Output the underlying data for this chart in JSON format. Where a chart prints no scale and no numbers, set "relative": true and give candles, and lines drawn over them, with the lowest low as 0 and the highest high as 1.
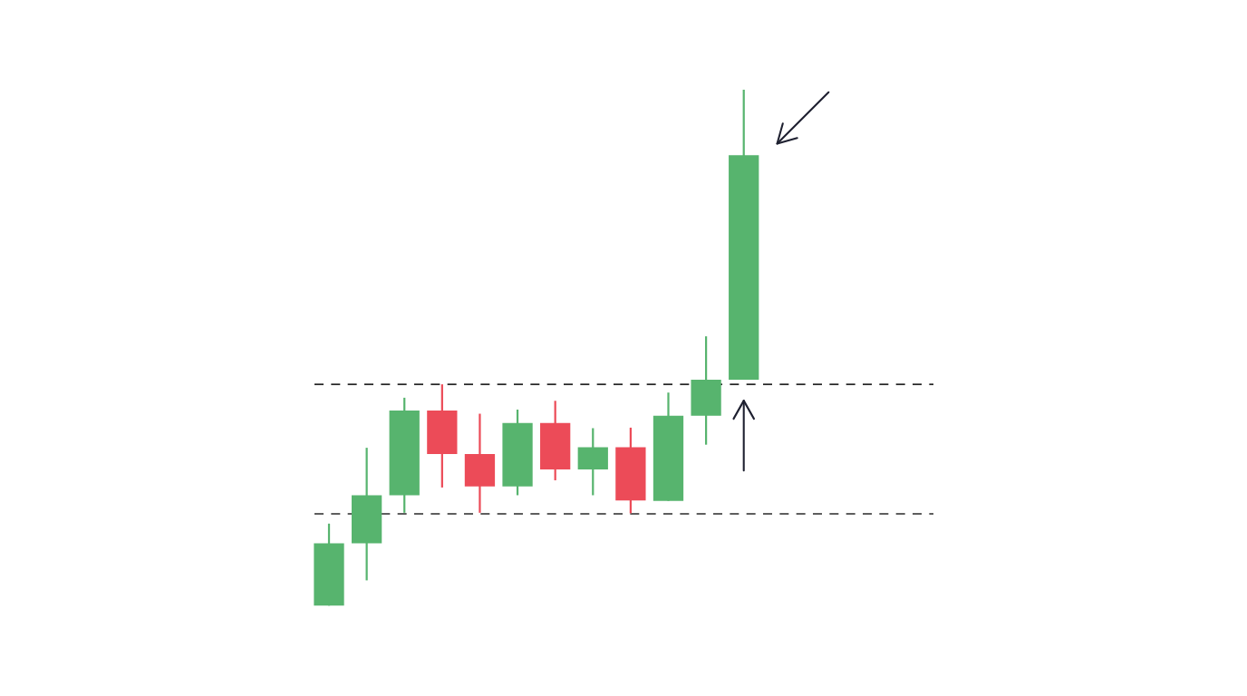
{
  "chart_data": {
    "type": "candlestick",
    "relative": true,
    "categories": [
      null,
      null,
      null,
      null,
      null,
      null,
      null,
      null,
      null,
      null,
      null,
      null
    ],
    "ohlc": [
      [
        0,
        0.159,
        0,
        0.121
      ],
      [
        0.121,
        0.306,
        0.049,
        0.214
      ],
      [
        0.214,
        0.403,
        0.18,
        0.378
      ],
      [
        0.378,
        0.429,
        0.229,
        0.294
      ],
      [
        0.294,
        0.372,
        0.18,
        0.231
      ],
      [
        0.231,
        0.38,
        0.214,
        0.354
      ],
      [
        0.354,
        0.397,
        0.243,
        0.264
      ],
      [
        0.264,
        0.344,
        0.214,
        0.307
      ],
      [
        0.307,
        0.345,
        0.179,
        0.204
      ],
      [
        0.203,
        0.413,
        0.203,
        0.368
      ],
      [
        0.368,
        0.522,
        0.312,
        0.438
      ],
      [
        0.438,
        1,
        0.438,
        0.873
      ]
    ],
    "colors": [
      "#57b46e",
      "#57b46e",
      "#57b46e",
      "#ec4b58",
      "#ec4b58",
      "#57b46e",
      "#ec4b58",
      "#57b46e",
      "#ec4b58",
      "#57b46e",
      "#57b46e",
      "#57b46e"
    ],
    "ref_lines": [
      {
        "axis": "y",
        "value": 0.429,
        "color": "#2a2a2a",
        "line_style": "dashed"
      },
      {
        "axis": "y",
        "value": 0.178,
        "color": "#2a2a2a",
        "line_style": "dashed"
      }
    ]
  }
}
